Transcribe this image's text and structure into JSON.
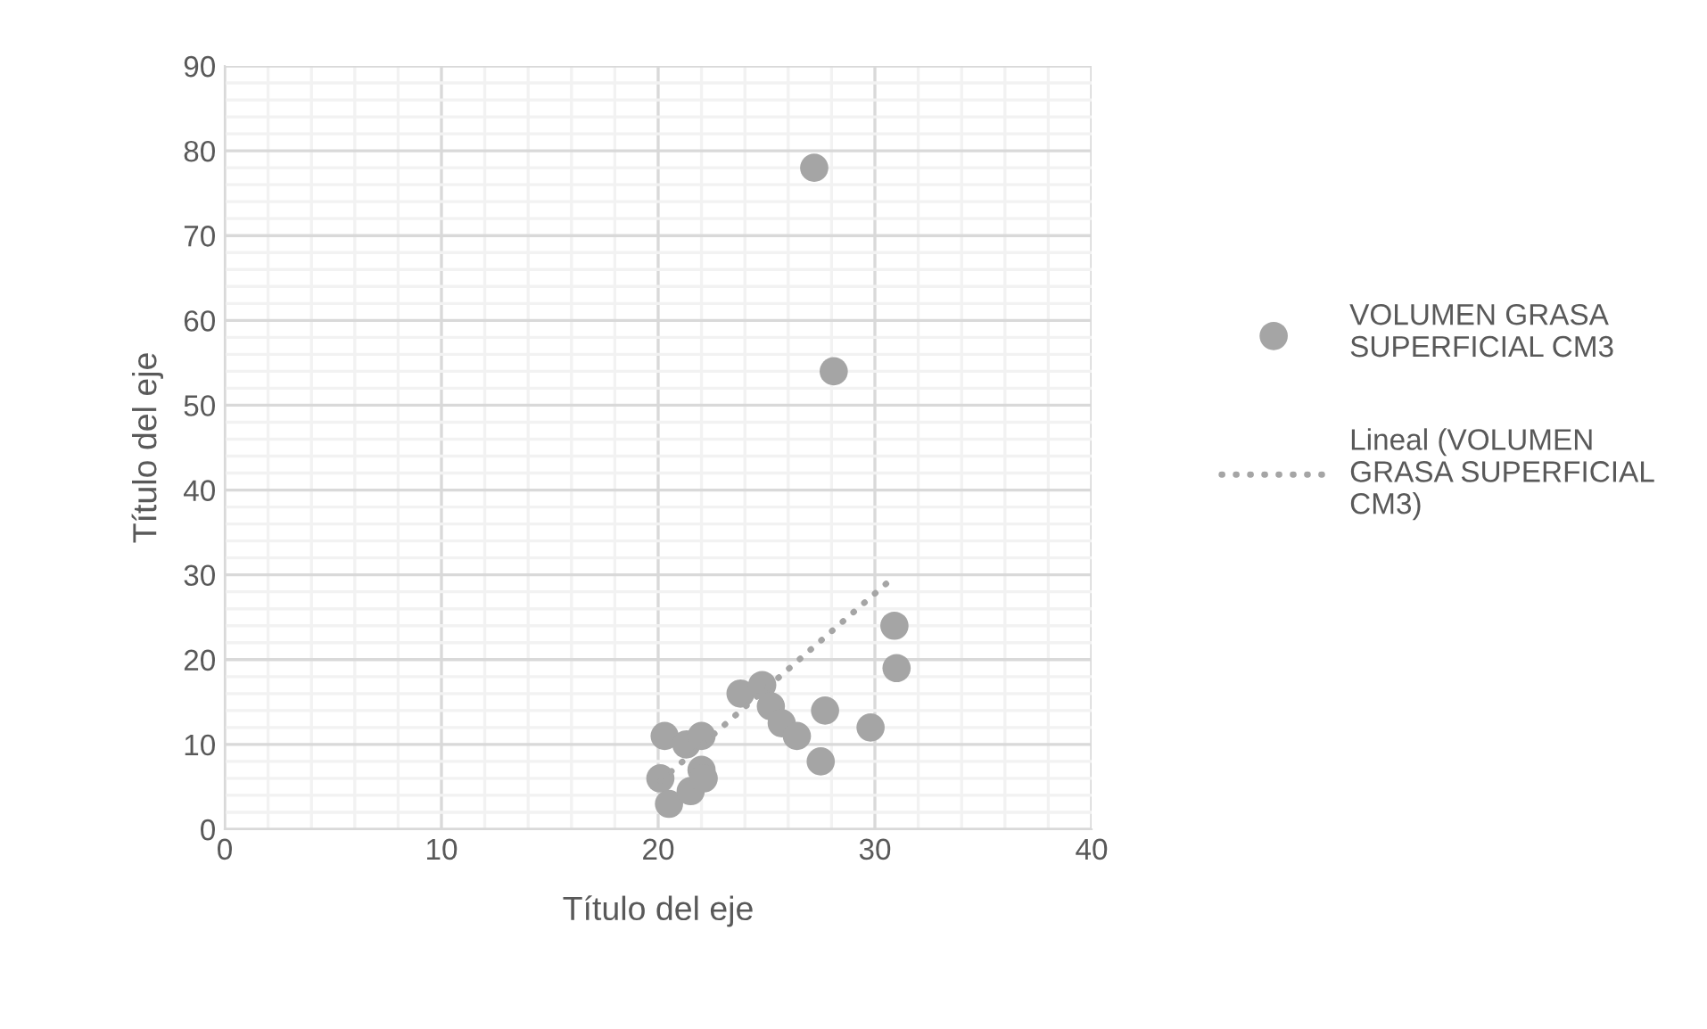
{
  "chart_data": {
    "type": "scatter",
    "xlabel": "Título del eje",
    "ylabel": "Título del eje",
    "xlim": [
      0,
      40
    ],
    "xticks": [
      0,
      10,
      20,
      30,
      40
    ],
    "ylim": [
      0,
      90
    ],
    "yticks": [
      0,
      10,
      20,
      30,
      40,
      50,
      60,
      70,
      80,
      90
    ],
    "grid": true,
    "legend": "right",
    "marker": "circle",
    "series": [
      {
        "name": "VOLUMEN GRASA SUPERFICIAL CM3",
        "color": "#a5a5a5",
        "x": [
          20.3,
          20.1,
          20.5,
          21.3,
          21.5,
          22.0,
          22.0,
          22.1,
          23.8,
          24.8,
          25.2,
          25.7,
          26.4,
          27.2,
          27.5,
          27.7,
          28.1,
          29.8,
          30.9,
          31.0
        ],
        "values": [
          11,
          6,
          3,
          10,
          4.5,
          7,
          11,
          6,
          16,
          17,
          14.5,
          12.5,
          11,
          78,
          8,
          14,
          54,
          12,
          24,
          19
        ]
      },
      {
        "name": "Lineal (VOLUMEN GRASA SUPERFICIAL CM3)",
        "type": "line",
        "line_style": "dotted",
        "marker": "none",
        "color": "#a5a5a5",
        "x": [
          20.1,
          30.9
        ],
        "values": [
          5.7,
          29.8
        ]
      }
    ]
  }
}
